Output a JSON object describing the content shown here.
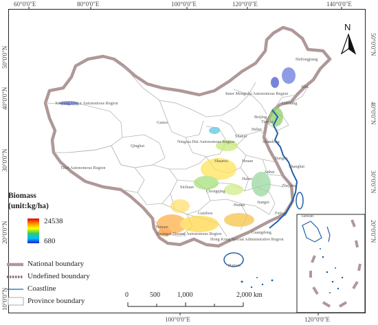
{
  "graticule": {
    "top": [
      "60°0'0\"E",
      "80°0'0\"E",
      "100°0'0\"E",
      "120°0'0\"E",
      "140°0'0\"E"
    ],
    "bottom": [
      "100°0'0\"E",
      "120°0'0\"E"
    ],
    "left": [
      "50°0'0\"N",
      "40°0'0\"N",
      "30°0'0\"N",
      "20°0'0\"N",
      "10°0'0\"N"
    ],
    "right": [
      "50°0'0\"N",
      "40°0'0\"N",
      "30°0'0\"N",
      "20°0'0\"N"
    ]
  },
  "provinces": [
    "Heilongjiang",
    "Jilin",
    "Liaoning",
    "Inner Mongolia Autonomous Region",
    "Xinjiang Uygur Autonomous Region",
    "Gansu",
    "Beijing",
    "Tianjin",
    "Hebei",
    "Shanxi",
    "Shandong",
    "Ningxia Hui Autonomous Region",
    "Qinghai",
    "Shaanxi",
    "Henan",
    "Jiangsu",
    "Tibet Autonomous Region",
    "Anhui",
    "Shanghai",
    "Hubei",
    "Zhejiang",
    "Sichuan",
    "Chongqing",
    "Hunan",
    "Jiangxi",
    "Guizhou",
    "Fujian",
    "Taiwan",
    "Yunnan",
    "Guangxi Zhuang Autonomous Region",
    "Guangdong",
    "Hong Kong Special Administrative Region",
    "Hainan"
  ],
  "compass": {
    "label": "N"
  },
  "legend": {
    "title_line1": "Biomass",
    "title_line2": "(unit:kg/ha)",
    "max": "24538",
    "min": "680",
    "items": [
      "National boundary",
      "Undefined boundary",
      "Coastline",
      "Province boundary"
    ]
  },
  "scale_bar": {
    "labels": [
      "0",
      "500",
      "1,000",
      "2,000 km"
    ]
  },
  "colors": {
    "national_boundary": "#b09898",
    "undefined_boundary": "#8c6a6a",
    "coastline": "#1f5fa8",
    "province_boundary": "#b4b4b4",
    "ramp": [
      "#e60000",
      "#ff8c00",
      "#ffff00",
      "#33cc66",
      "#00bfff",
      "#2020cc"
    ]
  }
}
